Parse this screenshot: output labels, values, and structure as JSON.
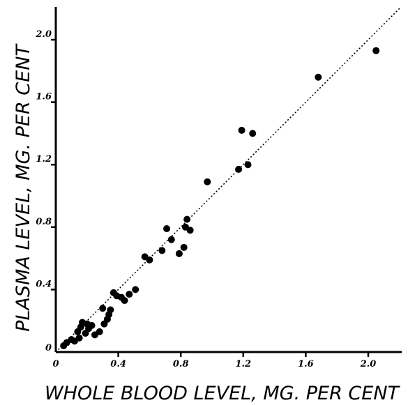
{
  "chart_data": {
    "type": "scatter",
    "title": "",
    "xlabel": "WHOLE BLOOD LEVEL, MG. PER CENT",
    "ylabel": "PLASMA LEVEL, MG. PER CENT",
    "xlim": [
      0,
      2.2
    ],
    "ylim": [
      0,
      2.2
    ],
    "x_ticks": [
      "0",
      "0.4",
      "0.8",
      "1.2",
      "1.6",
      "2.0"
    ],
    "y_ticks": [
      "0",
      "0.4",
      "0.8",
      "1.2",
      "1.6",
      "2.0"
    ],
    "grid": false,
    "legend": "none",
    "trend_line": {
      "style": "dotted",
      "from": [
        0,
        0
      ],
      "to": [
        2.2,
        2.2
      ]
    },
    "series": [
      {
        "points": [
          [
            0.05,
            0.04
          ],
          [
            0.07,
            0.06
          ],
          [
            0.1,
            0.08
          ],
          [
            0.12,
            0.07
          ],
          [
            0.14,
            0.13
          ],
          [
            0.15,
            0.09
          ],
          [
            0.16,
            0.16
          ],
          [
            0.17,
            0.19
          ],
          [
            0.19,
            0.12
          ],
          [
            0.2,
            0.18
          ],
          [
            0.21,
            0.15
          ],
          [
            0.23,
            0.17
          ],
          [
            0.25,
            0.11
          ],
          [
            0.28,
            0.13
          ],
          [
            0.3,
            0.28
          ],
          [
            0.31,
            0.18
          ],
          [
            0.33,
            0.21
          ],
          [
            0.34,
            0.24
          ],
          [
            0.35,
            0.27
          ],
          [
            0.37,
            0.38
          ],
          [
            0.39,
            0.36
          ],
          [
            0.42,
            0.35
          ],
          [
            0.44,
            0.33
          ],
          [
            0.47,
            0.37
          ],
          [
            0.51,
            0.4
          ],
          [
            0.57,
            0.61
          ],
          [
            0.6,
            0.59
          ],
          [
            0.68,
            0.65
          ],
          [
            0.71,
            0.79
          ],
          [
            0.74,
            0.72
          ],
          [
            0.79,
            0.63
          ],
          [
            0.82,
            0.67
          ],
          [
            0.83,
            0.8
          ],
          [
            0.84,
            0.85
          ],
          [
            0.86,
            0.78
          ],
          [
            0.97,
            1.09
          ],
          [
            1.17,
            1.17
          ],
          [
            1.19,
            1.42
          ],
          [
            1.23,
            1.2
          ],
          [
            1.26,
            1.4
          ],
          [
            1.68,
            1.76
          ],
          [
            2.05,
            1.93
          ]
        ]
      }
    ]
  }
}
